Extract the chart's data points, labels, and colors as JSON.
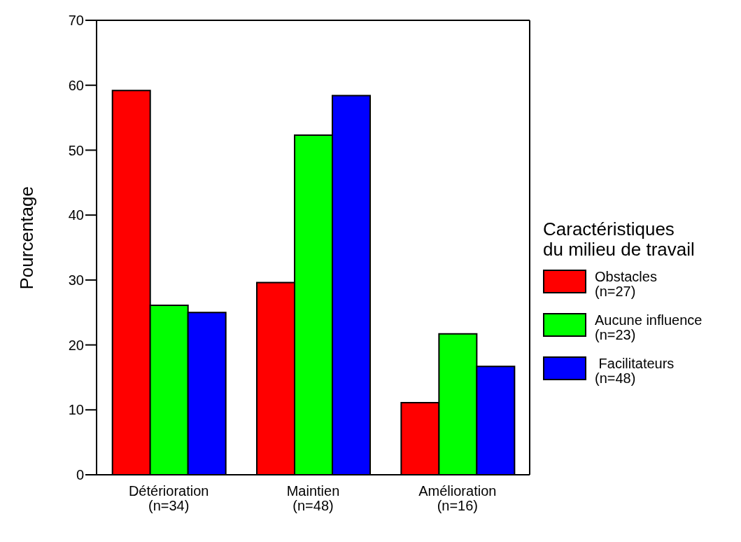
{
  "chart_data": {
    "type": "bar",
    "ylabel": "Pourcentage",
    "legend_title": "Caractéristiques\ndu milieu de travail",
    "categories": [
      "Détérioration\n(n=34)",
      "Maintien\n(n=48)",
      "Amélioration\n(n=16)"
    ],
    "series": [
      {
        "name": "Obstacles\n(n=27)",
        "color": "#ff0000",
        "values": [
          59.2,
          29.6,
          11.1
        ]
      },
      {
        "name": "Aucune influence\n(n=23)",
        "color": "#00ff00",
        "values": [
          26.1,
          52.3,
          21.7
        ]
      },
      {
        "name": " Facilitateurs\n(n=48)",
        "color": "#0000ff",
        "values": [
          25.0,
          58.4,
          16.7
        ]
      }
    ],
    "ylim": [
      0,
      70
    ],
    "yticks": [
      0,
      10,
      20,
      30,
      40,
      50,
      60,
      70
    ],
    "grid": false,
    "legend": "right"
  }
}
